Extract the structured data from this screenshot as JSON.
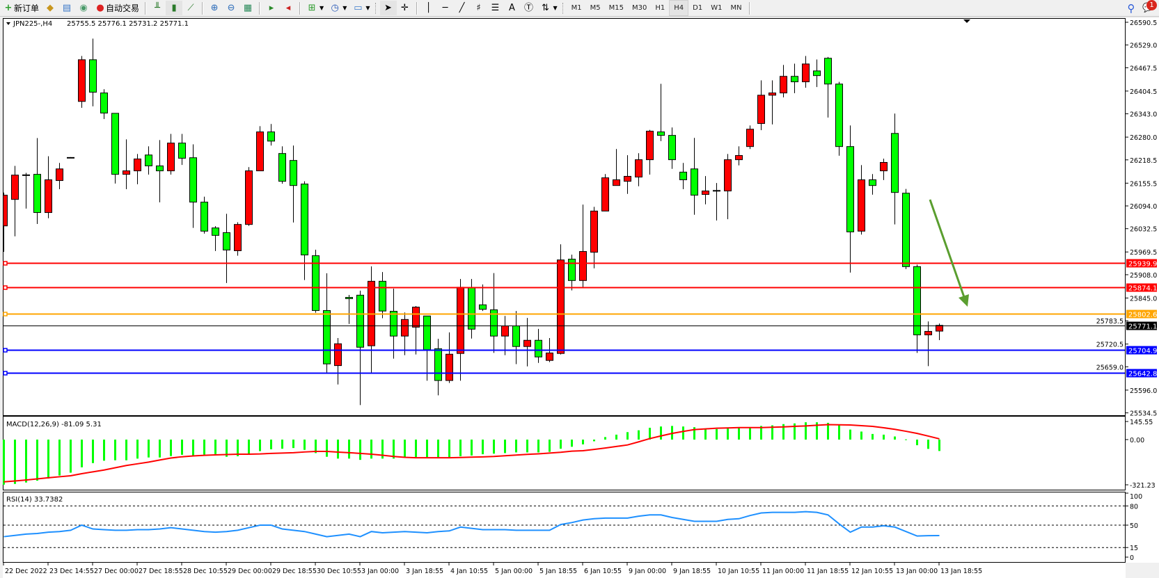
{
  "toolbar": {
    "new_order_label": "新订单",
    "auto_trading_label": "自动交易",
    "icons": [
      "new-order-icon",
      "market-watch-icon",
      "navigator-icon",
      "signals-icon",
      "auto-trading-icon",
      "bar-chart-icon",
      "candlestick-icon",
      "line-chart-icon",
      "zoom-in-icon",
      "zoom-out-icon",
      "tile-windows-icon",
      "auto-scroll-icon",
      "chart-shift-icon",
      "indicators-icon",
      "periodicity-icon",
      "templates-icon",
      "cursor-icon",
      "crosshair-icon",
      "vertical-line-icon",
      "horizontal-line-icon",
      "trendline-icon",
      "fibonacci-expansion-icon",
      "fibonacci-fan-icon",
      "text-icon",
      "text-label-icon",
      "arrows-icon",
      "search-icon",
      "notifications-icon"
    ],
    "timeframes": [
      "M1",
      "M5",
      "M15",
      "M30",
      "H1",
      "H4",
      "D1",
      "W1",
      "MN"
    ],
    "active_timeframe": "H4",
    "notification_count": "1"
  },
  "chart_header": {
    "symbol": "JPN225-,H4",
    "ohlc": "25755.5 25776.1 25731.2 25771.1"
  },
  "macd": {
    "label": "MACD(12,26,9) -81.09 5.31"
  },
  "rsi": {
    "label": "RSI(14) 33.7382"
  },
  "colors": {
    "bull": "#ff0000",
    "bear": "#00ff00",
    "macd_hist": "#00ff00",
    "macd_signal": "#ff0000",
    "rsi": "#1e90ff",
    "arrow": "#5a9e2f"
  },
  "chart_data": [
    {
      "type": "candlestick",
      "symbol": "JPN225-",
      "timeframe": "H4",
      "ylim": [
        25534.5,
        26590.5
      ],
      "y_ticks": [
        "26590.5",
        "26529.0",
        "26467.5",
        "26404.5",
        "26343.0",
        "26280.0",
        "26218.5",
        "26155.5",
        "26094.0",
        "26032.5",
        "25969.5",
        "25908.0",
        "25845.0",
        "25783.5",
        "25720.5",
        "25659.0",
        "25596.0",
        "25534.5"
      ],
      "x_ticks": [
        "22 Dec 2022",
        "23 Dec 14:55",
        "27 Dec 00:00",
        "27 Dec 18:55",
        "28 Dec 10:55",
        "29 Dec 00:00",
        "29 Dec 18:55",
        "30 Dec 10:55",
        "3 Jan 00:00",
        "3 Jan 18:55",
        "4 Jan 10:55",
        "5 Jan 00:00",
        "5 Jan 18:55",
        "6 Jan 10:55",
        "9 Jan 00:00",
        "9 Jan 18:55",
        "10 Jan 10:55",
        "11 Jan 00:00",
        "11 Jan 18:55",
        "12 Jan 10:55",
        "13 Jan 00:00",
        "13 Jan 18:55"
      ],
      "ohlc_fields": [
        "open",
        "high",
        "low",
        "close"
      ],
      "candles": [
        [
          26040,
          26130,
          25970,
          26123
        ],
        [
          26111.6,
          26202.2,
          26011.7,
          26177.3
        ],
        [
          26178,
          26183.4,
          26086.8,
          26178
        ],
        [
          26179.4,
          26277.3,
          26045.2,
          26076.1
        ],
        [
          26076.1,
          26228.3,
          26060.6,
          26164.6
        ],
        [
          26162.6,
          26210.2,
          26139.1,
          26194.1
        ],
        [
          26225,
          26226,
          26224,
          26225
        ],
        [
          26376.5,
          26499.3,
          26359.1,
          26489.2
        ],
        [
          26489.2,
          26546.2,
          26363.1,
          26401.4
        ],
        [
          26399.4,
          26409.4,
          26328.9,
          26345.0
        ],
        [
          26344.3,
          26344.3,
          26154.5,
          26179.4
        ],
        [
          26179.4,
          26273.9,
          26139.1,
          26188.8
        ],
        [
          26188.8,
          26234.4,
          26152.5,
          26220.9
        ],
        [
          26231.7,
          26255.1,
          26178.7,
          26202.2
        ],
        [
          26202.2,
          26271.9,
          26103.6,
          26188.8
        ],
        [
          26188.8,
          26288.7,
          26178.7,
          26263.9
        ],
        [
          26263.9,
          26288.7,
          26204.8,
          26222.9
        ],
        [
          26224.3,
          26260.5,
          26034.5,
          26104.3
        ],
        [
          26104.3,
          26119.0,
          26019.1,
          26025.8
        ],
        [
          26034.5,
          26039.2,
          25972.1,
          26014.4
        ],
        [
          26021.7,
          26072.7,
          25885.6,
          25974.8
        ],
        [
          25972.8,
          26049.9,
          25959.4,
          26043.9
        ],
        [
          26043.9,
          26198.8,
          26039.9,
          26188.8
        ],
        [
          26188.8,
          26309.5,
          26188.8,
          26294.1
        ],
        [
          26294.1,
          26315.5,
          26257.2,
          26269.2
        ],
        [
          26235.7,
          26255.1,
          26153.9,
          26160.6
        ],
        [
          26216.9,
          26257.2,
          26049.2,
          26149.2
        ],
        [
          26153.2,
          26160.6,
          25893.6,
          25961.4
        ],
        [
          25959.4,
          25975.5,
          25805.1,
          25811.2
        ],
        [
          25811.2,
          25911.8,
          25640.1,
          25666.9
        ],
        [
          25662.3,
          25736.7,
          25611.3,
          25721.3
        ],
        [
          25846.7,
          25853.4,
          25774.9,
          25843.3
        ],
        [
          25852.7,
          25864.8,
          25555.6,
          25711.9
        ],
        [
          25715.9,
          25930.5,
          25643.5,
          25890.3
        ],
        [
          25890.3,
          25915.1,
          25790.4,
          25809.8
        ],
        [
          25809.1,
          25870.2,
          25681.0,
          25742.1
        ],
        [
          25742.1,
          25805.8,
          25690.4,
          25787.0
        ],
        [
          25766.2,
          25823.2,
          25692.4,
          25820.5
        ],
        [
          25796.4,
          25796.4,
          25621.3,
          25705.2
        ],
        [
          25707.9,
          25734.7,
          25581.8,
          25622.0
        ],
        [
          25622.0,
          25752.1,
          25615.3,
          25693.1
        ],
        [
          25695.1,
          25896.3,
          25621.3,
          25874.2
        ],
        [
          25872.2,
          25896.3,
          25735.4,
          25760.8
        ],
        [
          25826.6,
          25881.6,
          25809.8,
          25814.5
        ],
        [
          25813.2,
          25912.4,
          25696.5,
          25742.1
        ],
        [
          25742.1,
          25796.4,
          25690.4,
          25769.6
        ],
        [
          25769.6,
          25809.8,
          25666.3,
          25713.9
        ],
        [
          25713.9,
          25791.0,
          25660.2,
          25730.7
        ],
        [
          25730.7,
          25761.5,
          25669.6,
          25685.7
        ],
        [
          25676.3,
          25736.7,
          25671.6,
          25696.5
        ],
        [
          25695.1,
          25990.2,
          25692.4,
          25948.0
        ],
        [
          25950.0,
          25962.1,
          25865.5,
          25892.3
        ],
        [
          25892.3,
          26097.5,
          25874.9,
          25970.8
        ],
        [
          25968.8,
          26091.5,
          25925.2,
          26080.1
        ],
        [
          26080.1,
          26180.0,
          26080.1,
          26170.0
        ],
        [
          26149.2,
          26247.8,
          26149.2,
          26164.6
        ],
        [
          26160.6,
          26231.0,
          26126.4,
          26174.0
        ],
        [
          26172.0,
          26236.4,
          26147.2,
          26218.9
        ],
        [
          26218.9,
          26299.4,
          26178.7,
          26296.1
        ],
        [
          26294.1,
          26424.2,
          26269.2,
          26284.7
        ],
        [
          26284.7,
          26306.1,
          26194.1,
          26218.9
        ],
        [
          26185.4,
          26210.2,
          26139.1,
          26164.6
        ],
        [
          26194.1,
          26277.9,
          26070.0,
          26123.0
        ],
        [
          26125.0,
          26174.7,
          26098.2,
          26134.4
        ],
        [
          26135.8,
          26155.9,
          26054.6,
          26135.8
        ],
        [
          26134.4,
          26234.4,
          26058.0,
          26218.9
        ],
        [
          26218.9,
          26255.1,
          26203.5,
          26230.3
        ],
        [
          26254.5,
          26311.5,
          26247.8,
          26301.4
        ],
        [
          26316.8,
          26433.6,
          26298.7,
          26393.3
        ],
        [
          26393.3,
          26433.6,
          26314.2,
          26399.4
        ],
        [
          26399.4,
          26475.1,
          26387.3,
          26444.3
        ],
        [
          26444.3,
          26478.5,
          26398.7,
          26429.5
        ],
        [
          26429.5,
          26499.3,
          26413.4,
          26477.8
        ],
        [
          26459.0,
          26489.9,
          26415.4,
          26446.3
        ],
        [
          26493.2,
          26496.6,
          26333.0,
          26423.5
        ],
        [
          26423.5,
          26429.5,
          26229.6,
          26254.5
        ],
        [
          26254.5,
          26311.5,
          25913.8,
          26023.8
        ],
        [
          26025.8,
          26204.2,
          26016.4,
          26164.6
        ],
        [
          26164.6,
          26180.0,
          26124.4,
          26149.2
        ],
        [
          26188.8,
          26221.6,
          26164.0,
          26211.6
        ],
        [
          26290.0,
          26343.7,
          26043.9,
          26130.4
        ],
        [
          26128.4,
          26139.8,
          25923.1,
          25929.9
        ],
        [
          25929.9,
          25935.2,
          25696.5,
          25745.4
        ],
        [
          25745.4,
          25781.6,
          25660.9,
          25754.8
        ],
        [
          25755.5,
          25776.1,
          25731.2,
          25771.1
        ]
      ],
      "levels": [
        {
          "price": "25939.9",
          "color": "#ff0000"
        },
        {
          "price": "25874.1",
          "color": "#ff0000"
        },
        {
          "price": "25802.6",
          "color": "#ffa500"
        },
        {
          "price": "25704.9",
          "color": "#0000ff"
        },
        {
          "price": "25642.8",
          "color": "#0000ff"
        }
      ],
      "current_price": "25771.1",
      "annotation": {
        "type": "arrow",
        "direction": "down",
        "color": "#5a9e2f"
      }
    },
    {
      "type": "bar+line",
      "indicator": "MACD(12,26,9)",
      "ylim": [
        -321.23,
        145.55
      ],
      "y_ticks": [
        "145.55",
        "0.00",
        "-321.23"
      ],
      "histogram": [
        -320,
        -315,
        -305,
        -292,
        -277,
        -255,
        -235,
        -197,
        -167,
        -150,
        -147,
        -147,
        -135,
        -127,
        -127,
        -117,
        -108,
        -113,
        -107,
        -103,
        -122,
        -118,
        -100,
        -82,
        -69,
        -65,
        -60,
        -73,
        -96,
        -122,
        -135,
        -135,
        -144,
        -135,
        -135,
        -135,
        -125,
        -125,
        -125,
        -125,
        -125,
        -118,
        -113,
        -104,
        -100,
        -96,
        -91,
        -91,
        -91,
        -87,
        -65,
        -51,
        -34,
        -12,
        18,
        35,
        53,
        66,
        84,
        93,
        97,
        93,
        88,
        79,
        75,
        84,
        84,
        84,
        97,
        101,
        110,
        115,
        123,
        123,
        119,
        101,
        71,
        57,
        40,
        35,
        22,
        1.5,
        -40,
        -66,
        -81.09
      ],
      "signal": [
        -300,
        -294,
        -287,
        -279,
        -271,
        -264,
        -257,
        -242,
        -229,
        -216,
        -200,
        -184,
        -172,
        -160,
        -145,
        -131,
        -122,
        -116,
        -112,
        -109,
        -106,
        -104,
        -104,
        -102,
        -98,
        -96,
        -93,
        -88,
        -84,
        -84,
        -89,
        -93,
        -98,
        -104,
        -111,
        -120,
        -126,
        -129,
        -129,
        -129,
        -129,
        -127,
        -125,
        -123,
        -120,
        -115,
        -110,
        -105,
        -101,
        -96,
        -90,
        -82,
        -79,
        -70,
        -60,
        -49,
        -38,
        -16,
        7,
        26,
        44,
        58,
        71,
        76,
        81,
        83,
        85,
        85,
        85,
        88,
        90,
        94,
        97,
        102,
        106,
        105,
        104,
        99,
        94,
        84,
        73,
        59,
        44,
        25,
        5.31
      ]
    },
    {
      "type": "line",
      "indicator": "RSI(14)",
      "ylim": [
        0,
        100
      ],
      "y_ticks": [
        "100",
        "80",
        "50",
        "15",
        "0"
      ],
      "levels": [
        80,
        50,
        15
      ],
      "values": [
        32,
        34,
        36,
        37,
        39,
        40,
        42,
        50,
        44,
        43,
        42,
        42,
        43,
        43,
        44,
        46,
        44,
        42,
        40,
        39,
        40,
        42,
        46,
        50,
        50,
        44,
        42,
        40,
        36,
        32,
        34,
        36,
        32,
        40,
        38,
        39,
        40,
        39,
        38,
        40,
        41,
        47,
        45,
        43,
        43,
        43,
        42,
        42,
        42,
        42,
        51,
        54,
        58,
        60,
        61,
        61,
        61,
        64,
        66,
        66,
        62,
        59,
        56,
        56,
        56,
        59,
        60,
        65,
        69,
        70,
        70,
        70,
        71,
        70,
        66,
        52,
        39,
        47,
        47,
        49,
        47,
        40,
        33,
        33.5,
        33.7382
      ]
    }
  ]
}
